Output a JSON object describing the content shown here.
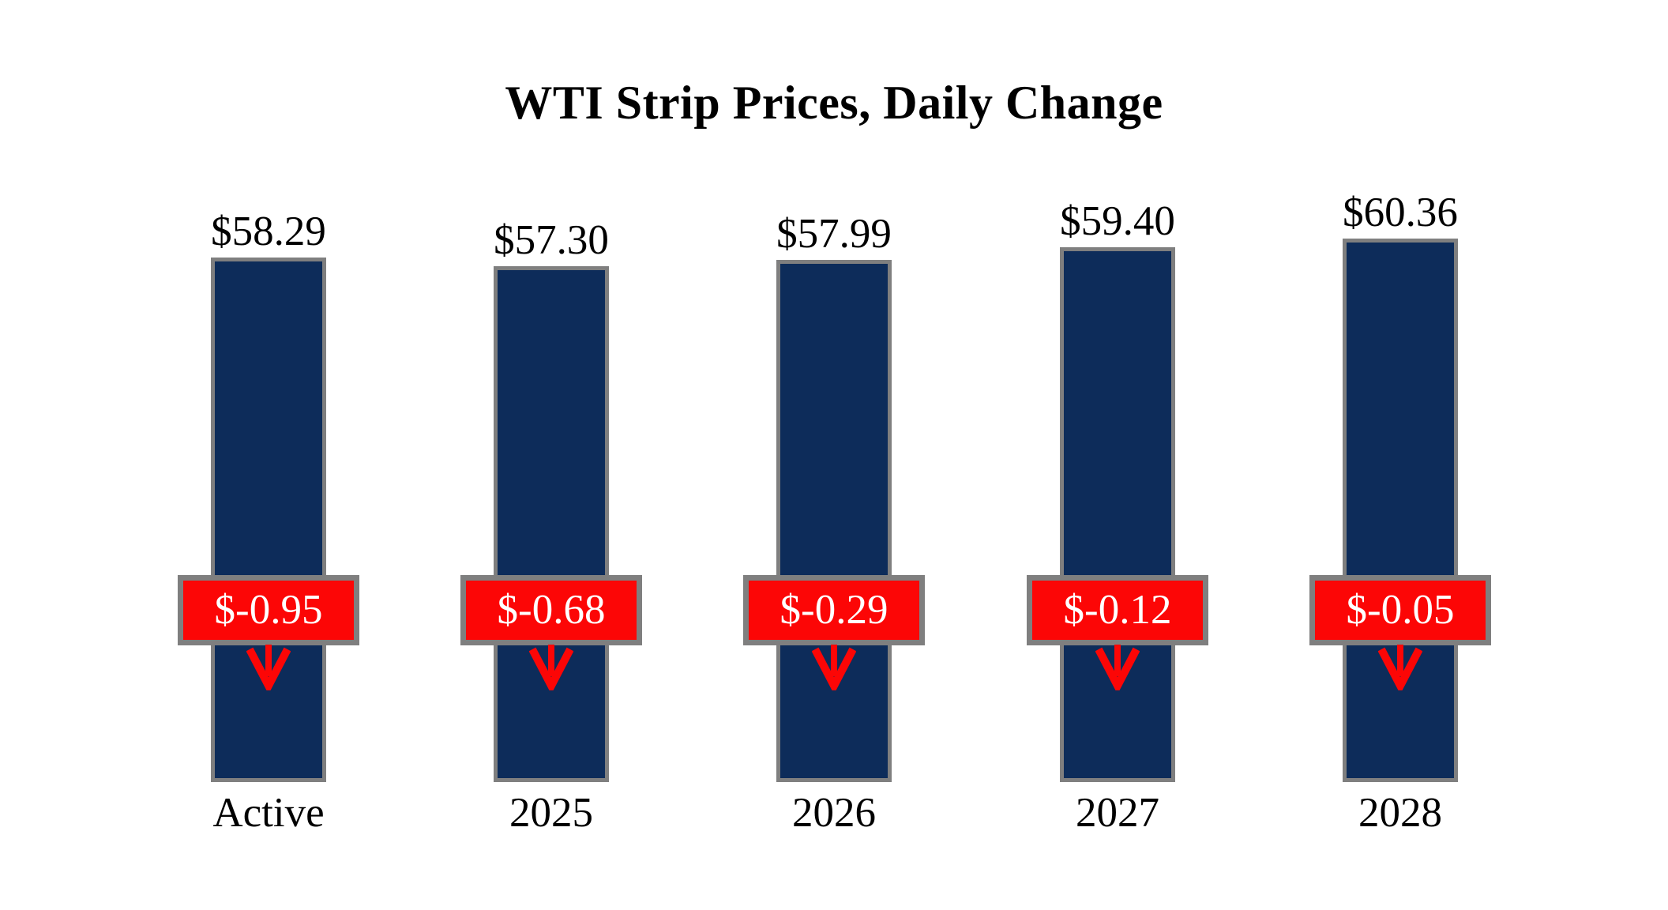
{
  "chart_data": {
    "type": "bar",
    "title": "WTI Strip Prices, Daily Change",
    "categories": [
      "Active",
      "2025",
      "2026",
      "2027",
      "2028"
    ],
    "values": [
      58.29,
      57.3,
      57.99,
      59.4,
      60.36
    ],
    "value_labels": [
      "$58.29",
      "$57.30",
      "$57.99",
      "$59.40",
      "$60.36"
    ],
    "changes": [
      -0.95,
      -0.68,
      -0.29,
      -0.12,
      -0.05
    ],
    "change_labels": [
      "$-0.95",
      "$-0.68",
      "$-0.29",
      "$-0.12",
      "$-0.05"
    ],
    "xlabel": "",
    "ylabel": "",
    "ylim": [
      0,
      62
    ],
    "grid": false,
    "legend": "none",
    "direction_icon": "down-arrow",
    "colors": {
      "bar_fill": "#0d2c5a",
      "bar_border": "#7f7f7f",
      "change_fill": "#fc0606",
      "change_border": "#7f7f7f",
      "change_text": "#ffffff",
      "arrow": "#fc0606",
      "title_text": "#000000",
      "label_text": "#000000",
      "background": "#ffffff"
    }
  }
}
